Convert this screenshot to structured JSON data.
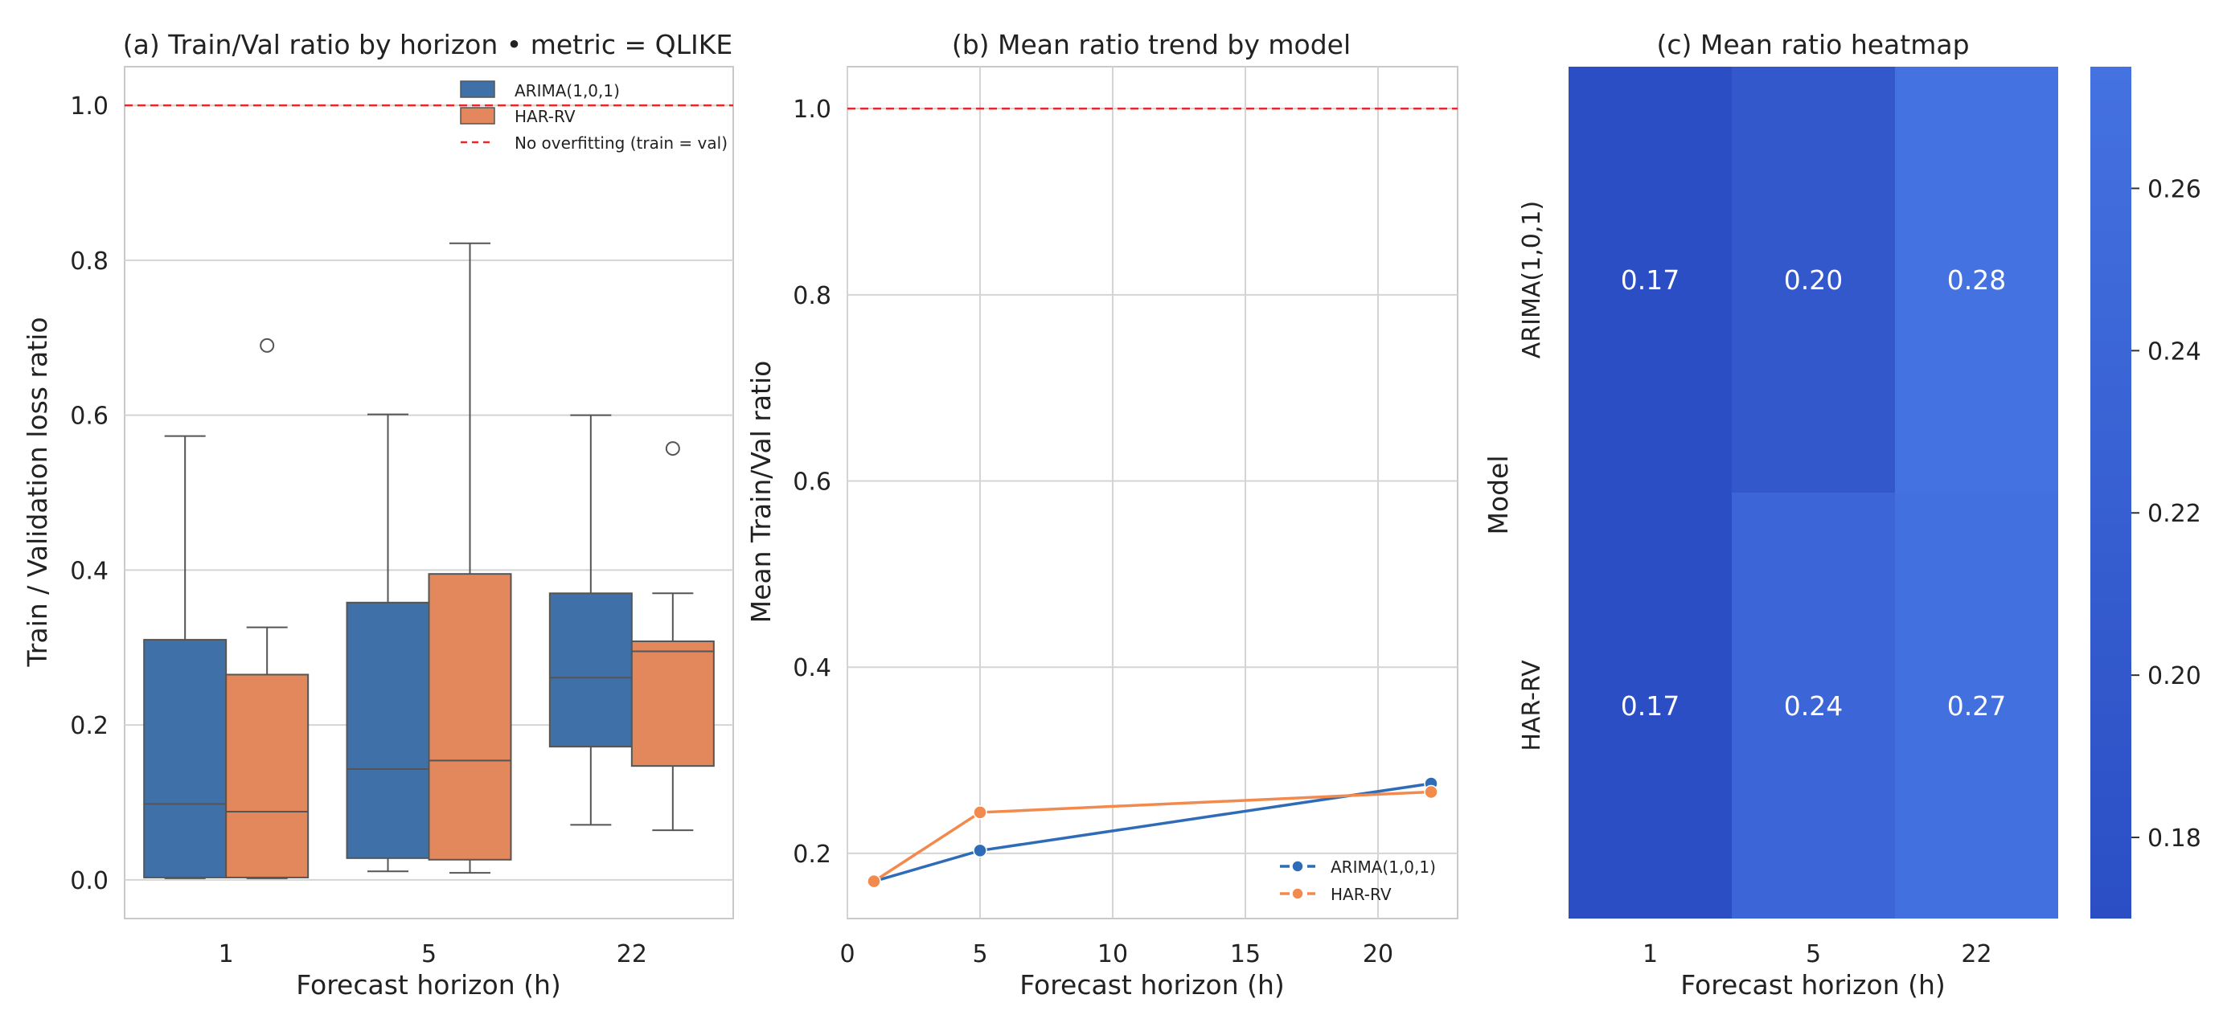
{
  "colors": {
    "arima": "#3f71a8",
    "har": "#e2885c",
    "arima_line": "#2f6cb8",
    "har_line": "#f28a4e",
    "grid": "#d4d4d4",
    "edge": "#555555",
    "ref": "#e8262b",
    "cmap_low": "#2b4ec4",
    "cmap_high": "#4472e0"
  },
  "chart_data": [
    {
      "panel": "a",
      "type": "box",
      "title": "(a) Train/Val ratio by horizon • metric = QLIKE",
      "xlabel": "Forecast horizon (h)",
      "ylabel": "Train / Validation loss ratio",
      "categories": [
        "1",
        "5",
        "22"
      ],
      "ylim": [
        -0.05,
        1.05
      ],
      "yticks": [
        0.0,
        0.2,
        0.4,
        0.6,
        0.8,
        1.0
      ],
      "ytick_labels": [
        "0.0",
        "0.2",
        "0.4",
        "0.6",
        "0.8",
        "1.0"
      ],
      "reference_line": 1.0,
      "series": [
        {
          "name": "ARIMA(1,0,1)",
          "color_key": "arima",
          "boxes": [
            {
              "whislo": 0.002,
              "q1": 0.003,
              "med": 0.098,
              "q3": 0.31,
              "whishi": 0.573,
              "fliers": []
            },
            {
              "whislo": 0.011,
              "q1": 0.028,
              "med": 0.143,
              "q3": 0.358,
              "whishi": 0.601,
              "fliers": []
            },
            {
              "whislo": 0.071,
              "q1": 0.172,
              "med": 0.261,
              "q3": 0.37,
              "whishi": 0.6,
              "fliers": []
            }
          ]
        },
        {
          "name": "HAR-RV",
          "color_key": "har",
          "boxes": [
            {
              "whislo": 0.002,
              "q1": 0.003,
              "med": 0.088,
              "q3": 0.265,
              "whishi": 0.326,
              "fliers": [
                0.69
              ]
            },
            {
              "whislo": 0.009,
              "q1": 0.026,
              "med": 0.154,
              "q3": 0.395,
              "whishi": 0.822,
              "fliers": []
            },
            {
              "whislo": 0.064,
              "q1": 0.147,
              "med": 0.295,
              "q3": 0.308,
              "whishi": 0.37,
              "fliers": [
                0.557
              ]
            }
          ]
        }
      ],
      "legend": {
        "placement": "top-right",
        "entries": [
          "ARIMA(1,0,1)",
          "HAR-RV",
          "No overfitting (train = val)"
        ]
      }
    },
    {
      "panel": "b",
      "type": "line",
      "title": "(b) Mean ratio trend by model",
      "xlabel": "Forecast horizon (h)",
      "ylabel": "Mean Train/Val ratio",
      "xlim": [
        0,
        23
      ],
      "ylim": [
        0.13,
        1.045
      ],
      "xticks": [
        0,
        5,
        10,
        15,
        20
      ],
      "xtick_labels": [
        "0",
        "5",
        "10",
        "15",
        "20"
      ],
      "yticks": [
        0.2,
        0.4,
        0.6,
        0.8,
        1.0
      ],
      "ytick_labels": [
        "0.2",
        "0.4",
        "0.6",
        "0.8",
        "1.0"
      ],
      "reference_line": 1.0,
      "x": [
        1,
        5,
        22
      ],
      "series": [
        {
          "name": "ARIMA(1,0,1)",
          "color_key": "arima_line",
          "values": [
            0.17,
            0.203,
            0.275
          ]
        },
        {
          "name": "HAR-RV",
          "color_key": "har_line",
          "values": [
            0.17,
            0.244,
            0.266
          ]
        }
      ],
      "legend": {
        "placement": "bottom-right",
        "entries": [
          "ARIMA(1,0,1)",
          "HAR-RV"
        ]
      }
    },
    {
      "panel": "c",
      "type": "heatmap",
      "title": "(c) Mean ratio heatmap",
      "xlabel": "Forecast horizon (h)",
      "ylabel": "Model",
      "columns": [
        "1",
        "5",
        "22"
      ],
      "rows": [
        "ARIMA(1,0,1)",
        "HAR-RV"
      ],
      "values": [
        [
          0.17,
          0.2,
          0.28
        ],
        [
          0.17,
          0.24,
          0.27
        ]
      ],
      "cell_labels": [
        [
          "0.17",
          "0.20",
          "0.28"
        ],
        [
          "0.17",
          "0.24",
          "0.27"
        ]
      ],
      "colorbar": {
        "vmin": 0.17,
        "vmax": 0.275,
        "ticks": [
          0.18,
          0.2,
          0.22,
          0.24,
          0.26
        ],
        "tick_labels": [
          "0.18",
          "0.20",
          "0.22",
          "0.24",
          "0.26"
        ]
      }
    }
  ]
}
